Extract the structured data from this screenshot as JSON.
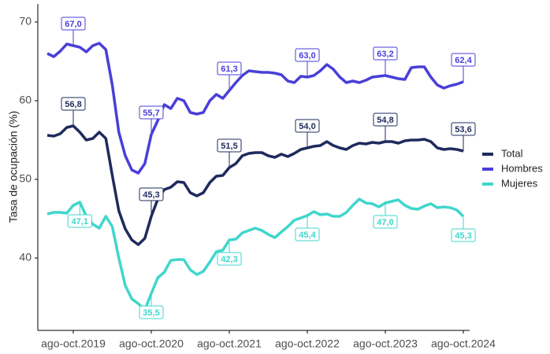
{
  "chart_data": {
    "type": "line",
    "y_label": "Tasa de ocupación (%)",
    "categories": [
      null,
      null,
      null,
      null,
      "ago-oct.2019",
      null,
      null,
      null,
      null,
      null,
      null,
      null,
      null,
      null,
      null,
      null,
      "ago-oct.2020",
      null,
      null,
      null,
      null,
      null,
      null,
      null,
      null,
      null,
      null,
      null,
      "ago-oct.2021",
      null,
      null,
      null,
      null,
      null,
      null,
      null,
      null,
      null,
      null,
      null,
      "ago-oct.2022",
      null,
      null,
      null,
      null,
      null,
      null,
      null,
      null,
      null,
      null,
      null,
      "ago-oct.2023",
      null,
      null,
      null,
      null,
      null,
      null,
      null,
      null,
      null,
      null,
      null,
      "ago-oct.2024"
    ],
    "ylim": [
      30.8,
      72.3
    ],
    "yticks": [
      40,
      50,
      60,
      70
    ],
    "grid": false,
    "legend": "right",
    "series": [
      {
        "name": "Total",
        "color": "#1e2b5c",
        "values": [
          55.6,
          55.5,
          55.8,
          56.6,
          56.8,
          56.0,
          55.0,
          55.2,
          56.0,
          55.2,
          50.5,
          46.0,
          43.7,
          42.3,
          41.7,
          42.5,
          45.3,
          47.5,
          48.7,
          49.0,
          49.7,
          49.6,
          48.3,
          47.9,
          48.3,
          49.6,
          50.4,
          50.5,
          51.5,
          52.0,
          53.0,
          53.3,
          53.4,
          53.4,
          53.0,
          52.8,
          53.2,
          52.9,
          53.3,
          53.8,
          54.0,
          54.2,
          54.3,
          54.8,
          54.3,
          54.0,
          53.8,
          54.3,
          54.6,
          54.5,
          54.7,
          54.6,
          54.8,
          54.8,
          54.6,
          54.9,
          55.0,
          55.0,
          55.1,
          54.8,
          54.0,
          53.8,
          53.9,
          53.8,
          53.6
        ],
        "value_labels": [
          null,
          null,
          null,
          null,
          "56,8",
          null,
          null,
          null,
          null,
          null,
          null,
          null,
          null,
          null,
          null,
          null,
          "45,3",
          null,
          null,
          null,
          null,
          null,
          null,
          null,
          null,
          null,
          null,
          null,
          "51,5",
          null,
          null,
          null,
          null,
          null,
          null,
          null,
          null,
          null,
          null,
          null,
          "54,0",
          null,
          null,
          null,
          null,
          null,
          null,
          null,
          null,
          null,
          null,
          null,
          "54,8",
          null,
          null,
          null,
          null,
          null,
          null,
          null,
          null,
          null,
          null,
          null,
          "53,6"
        ]
      },
      {
        "name": "Hombres",
        "color": "#4a3fd8",
        "values": [
          66.0,
          65.6,
          66.3,
          67.2,
          67.0,
          66.8,
          66.2,
          67.0,
          67.3,
          66.5,
          62.0,
          56.0,
          53.0,
          51.2,
          50.8,
          52.0,
          55.7,
          57.5,
          59.5,
          59.0,
          60.3,
          60.0,
          58.5,
          58.3,
          58.5,
          60.0,
          60.8,
          60.3,
          61.3,
          62.3,
          63.2,
          63.8,
          63.7,
          63.6,
          63.6,
          63.5,
          63.3,
          62.5,
          62.3,
          63.1,
          63.0,
          63.2,
          63.8,
          64.6,
          64.0,
          63.0,
          62.3,
          62.5,
          62.3,
          62.6,
          63.0,
          63.1,
          63.2,
          63.0,
          62.8,
          62.7,
          64.2,
          64.3,
          64.3,
          63.0,
          62.0,
          61.6,
          61.9,
          62.1,
          62.4
        ],
        "value_labels": [
          null,
          null,
          null,
          null,
          "67,0",
          null,
          null,
          null,
          null,
          null,
          null,
          null,
          null,
          null,
          null,
          null,
          "55,7",
          null,
          null,
          null,
          null,
          null,
          null,
          null,
          null,
          null,
          null,
          null,
          "61,3",
          null,
          null,
          null,
          null,
          null,
          null,
          null,
          null,
          null,
          null,
          null,
          "63,0",
          null,
          null,
          null,
          null,
          null,
          null,
          null,
          null,
          null,
          null,
          null,
          "63,2",
          null,
          null,
          null,
          null,
          null,
          null,
          null,
          null,
          null,
          null,
          null,
          "62,4"
        ]
      },
      {
        "name": "Mujeres",
        "color": "#40d6cc",
        "values": [
          45.6,
          45.8,
          45.8,
          45.7,
          46.7,
          47.1,
          45.3,
          44.3,
          43.8,
          45.3,
          44.0,
          40.0,
          36.5,
          34.8,
          34.2,
          33.4,
          35.5,
          37.5,
          38.2,
          39.7,
          39.8,
          39.8,
          38.5,
          37.9,
          38.3,
          39.5,
          40.8,
          41.0,
          42.3,
          42.4,
          43.2,
          43.5,
          43.8,
          43.5,
          43.0,
          42.6,
          43.3,
          44.0,
          44.8,
          45.1,
          45.4,
          45.9,
          45.5,
          45.6,
          45.3,
          45.3,
          45.8,
          46.7,
          47.5,
          47.0,
          46.9,
          46.5,
          47.0,
          47.2,
          47.4,
          46.7,
          46.3,
          46.2,
          46.6,
          46.9,
          46.4,
          46.5,
          46.4,
          46.1,
          45.3
        ],
        "value_labels": [
          null,
          null,
          null,
          null,
          null,
          "47,1",
          null,
          null,
          null,
          null,
          null,
          null,
          null,
          null,
          null,
          null,
          "35,5",
          null,
          null,
          null,
          null,
          null,
          null,
          null,
          null,
          null,
          null,
          null,
          "42,3",
          null,
          null,
          null,
          null,
          null,
          null,
          null,
          null,
          null,
          null,
          null,
          "45,4",
          null,
          null,
          null,
          null,
          null,
          null,
          null,
          null,
          null,
          null,
          null,
          "47,0",
          null,
          null,
          null,
          null,
          null,
          null,
          null,
          null,
          null,
          null,
          null,
          "45,3"
        ]
      }
    ]
  }
}
